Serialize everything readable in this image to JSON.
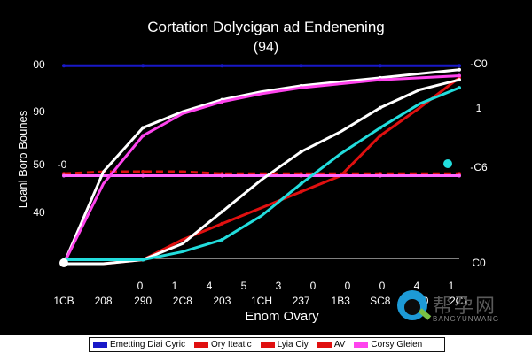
{
  "chart_data": {
    "type": "line",
    "title": "Cortation  Dolycigan ad Endenening",
    "subtitle": "(94)",
    "xlabel": "Enom Ovary",
    "ylabel": "Loanl Boro Bounes",
    "x_ticks": [
      "1CB",
      "208",
      "290",
      "2C8",
      "203",
      "1CH",
      "237",
      "1B3",
      "SC8",
      "230",
      "2C1"
    ],
    "x_ticks_top": [
      "",
      "",
      "0",
      "1",
      "4",
      "5",
      "3",
      "0",
      "0",
      "0",
      "4",
      "1"
    ],
    "y_ticks": [
      "00",
      "90",
      "50",
      "40"
    ],
    "y_right_ticks": [
      "-C0",
      "1",
      "-C6",
      "C0"
    ],
    "y_inner_tick": "-0",
    "xlim": [
      0,
      10
    ],
    "ylim": [
      0,
      100
    ],
    "series": [
      {
        "name": "Emetting Diai Cyric",
        "color": "#1818c8",
        "values": [
          99,
          99,
          99,
          99,
          99,
          99,
          99,
          99,
          99,
          99,
          99
        ]
      },
      {
        "name": "Ory Iteatic",
        "color": "#e01010",
        "values": [
          0,
          0,
          2,
          12,
          20,
          28,
          36,
          44,
          64,
          78,
          93
        ]
      },
      {
        "name": "Lyia Ciy",
        "color": "#e01010",
        "dashed": true,
        "values": [
          45,
          46,
          46,
          46,
          45,
          45,
          45,
          45,
          45,
          45,
          45
        ]
      },
      {
        "name": "AV",
        "color": "#ff66ff",
        "values": [
          44,
          44,
          44,
          44,
          44,
          44,
          44,
          44,
          44,
          44,
          44
        ]
      },
      {
        "name": "",
        "color": "#ffffff",
        "values": [
          0,
          46,
          68,
          76,
          82,
          86,
          89,
          91,
          93,
          95,
          97
        ]
      },
      {
        "name": "",
        "color": "#ffffff",
        "values": [
          0,
          0,
          2,
          10,
          26,
          42,
          56,
          66,
          78,
          87,
          92
        ]
      },
      {
        "name": "",
        "color": "#ff44ee",
        "values": [
          0,
          40,
          64,
          75,
          81,
          85,
          88,
          90,
          92,
          93,
          94
        ]
      },
      {
        "name": "Corsy Gleien",
        "color": "#22dddd",
        "values": [
          2,
          2,
          2,
          6,
          12,
          24,
          40,
          55,
          68,
          80,
          88
        ]
      }
    ],
    "grid": false,
    "legend_position": "bottom"
  },
  "legend": [
    {
      "label": "Emetting Diai Cyric",
      "color": "#1818c8"
    },
    {
      "label": "Ory Iteatic",
      "color": "#e01010"
    },
    {
      "label": "Lyia Ciy",
      "color": "#e01010"
    },
    {
      "label": "AV",
      "color": "#e01010"
    },
    {
      "label": "Corsy Gleien",
      "color": "#ff44ee"
    }
  ],
  "watermark": {
    "text": "帮孕网",
    "sub": "BANGYUNWANG"
  }
}
